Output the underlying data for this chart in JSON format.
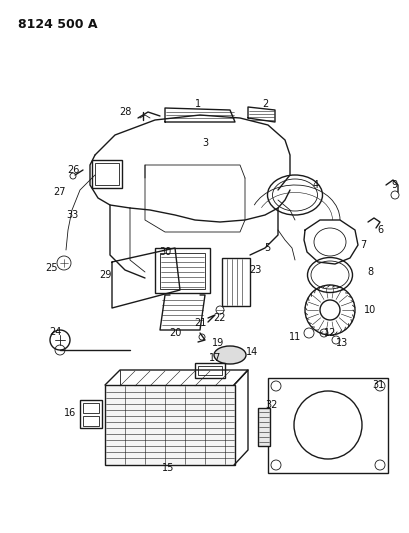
{
  "title": "8124 500 A",
  "bg_color": "#ffffff",
  "line_color": "#1a1a1a",
  "label_color": "#111111",
  "title_fontsize": 9,
  "label_fontsize": 7,
  "fig_w": 4.1,
  "fig_h": 5.33,
  "dpi": 100
}
